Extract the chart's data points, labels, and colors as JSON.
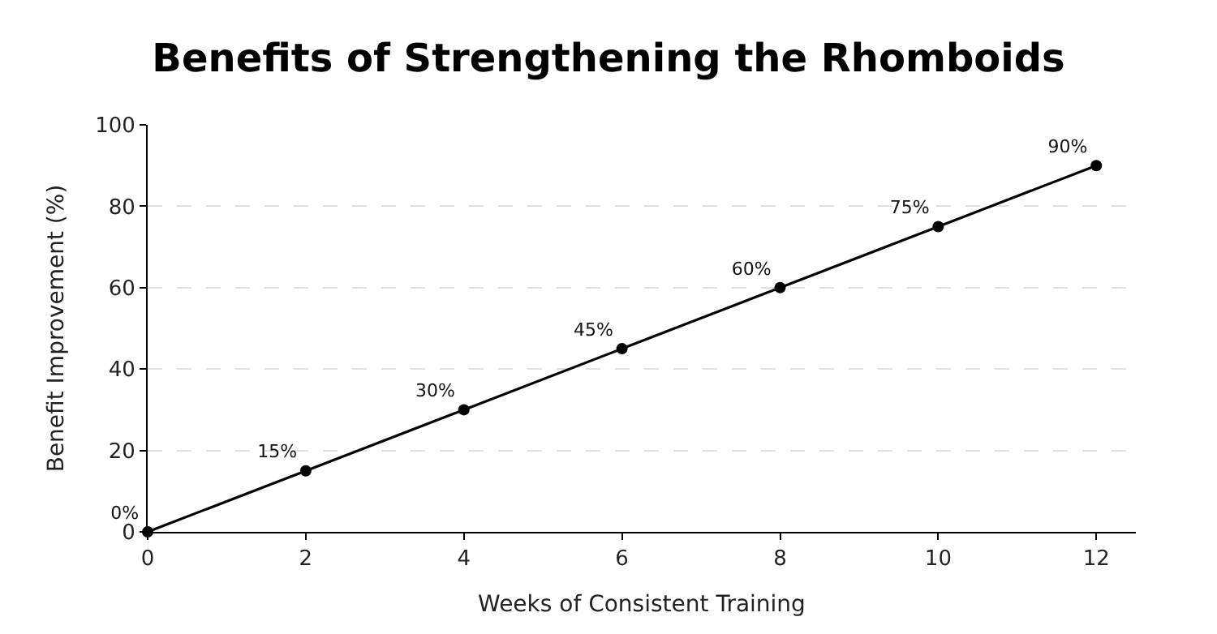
{
  "chart_data": {
    "type": "line",
    "title": "Benefits of Strengthening the Rhomboids",
    "xlabel": "Weeks of Consistent Training",
    "ylabel": "Benefit Improvement (%)",
    "x": [
      0,
      2,
      4,
      6,
      8,
      10,
      12
    ],
    "series": [
      {
        "color": "#000000",
        "values": [
          0,
          15,
          30,
          45,
          60,
          75,
          90
        ],
        "value_labels": [
          "0%",
          "15%",
          "30%",
          "45%",
          "60%",
          "75%",
          "90%"
        ]
      }
    ],
    "xlim": [
      0,
      12.5
    ],
    "xticks": [
      0,
      2,
      4,
      6,
      8,
      10,
      12
    ],
    "ylim": [
      0,
      100
    ],
    "yticks": [
      0,
      20,
      40,
      60,
      80,
      100
    ],
    "grid": "y",
    "marker": "circle",
    "line_style": "solid",
    "legend": false
  }
}
